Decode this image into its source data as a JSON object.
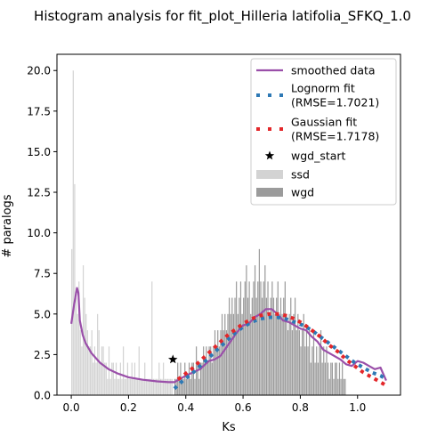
{
  "chart_data": {
    "type": "histogram",
    "title": "Histogram analysis for fit_plot_Hilleria latifolia_SFKQ_1.0",
    "xlabel": "Ks",
    "ylabel": "# paralogs",
    "xlim": [
      -0.05,
      1.15
    ],
    "ylim": [
      0,
      21
    ],
    "xticks": [
      0.0,
      0.2,
      0.4,
      0.6,
      0.8,
      1.0
    ],
    "xtick_labels": [
      "0.0",
      "0.2",
      "0.4",
      "0.6",
      "0.8",
      "1.0"
    ],
    "yticks": [
      0.0,
      2.5,
      5.0,
      7.5,
      10.0,
      12.5,
      15.0,
      17.5,
      20.0
    ],
    "ytick_labels": [
      "0.0",
      "2.5",
      "5.0",
      "7.5",
      "10.0",
      "12.5",
      "15.0",
      "17.5",
      "20.0"
    ],
    "grid": false,
    "legend_position": "upper-right",
    "legend": [
      {
        "key": "smoothed",
        "label": "smoothed data"
      },
      {
        "key": "lognorm",
        "label": "Lognorm fit",
        "label2": "(RMSE=1.7021)"
      },
      {
        "key": "gaussian",
        "label": "Gaussian fit",
        "label2": "(RMSE=1.7178)"
      },
      {
        "key": "wgd_start",
        "label": "wgd_start"
      },
      {
        "key": "ssd",
        "label": "ssd"
      },
      {
        "key": "wgd",
        "label": "wgd"
      }
    ],
    "colors": {
      "ssd": "#d3d3d3",
      "wgd": "#9b9b9b",
      "smoothed": "#9a4fa9",
      "lognorm": "#2e79b5",
      "gaussian": "#e3272a",
      "wgd_start": "#000000"
    },
    "bin_width": 0.005,
    "ssd_bins_start": 0.0,
    "ssd_counts": [
      9,
      20,
      13,
      6,
      5,
      7,
      4,
      3,
      8,
      6,
      5,
      4,
      3,
      3,
      4,
      2,
      3,
      2,
      5,
      4,
      2,
      3,
      3,
      2,
      2,
      1,
      3,
      1,
      2,
      2,
      1,
      2,
      1,
      1,
      2,
      1,
      3,
      1,
      1,
      2,
      1,
      1,
      2,
      1,
      2,
      1,
      1,
      3,
      1,
      1,
      1,
      2,
      1,
      1,
      1,
      1,
      7,
      1,
      1,
      1,
      1,
      2,
      1,
      1,
      2,
      1,
      1,
      1,
      1,
      1,
      1
    ],
    "wgd_bins_start": 0.36,
    "wgd_counts": [
      1,
      1,
      2,
      1,
      2,
      1,
      1,
      2,
      1,
      1,
      2,
      1,
      2,
      2,
      1,
      3,
      2,
      1,
      2,
      2,
      3,
      2,
      3,
      2,
      3,
      3,
      2,
      3,
      4,
      3,
      4,
      3,
      4,
      5,
      4,
      5,
      4,
      5,
      6,
      5,
      6,
      5,
      6,
      7,
      5,
      6,
      7,
      5,
      6,
      7,
      8,
      6,
      7,
      5,
      6,
      7,
      8,
      6,
      7,
      9,
      7,
      6,
      7,
      8,
      6,
      7,
      5,
      6,
      7,
      6,
      5,
      6,
      7,
      5,
      6,
      5,
      6,
      7,
      5,
      4,
      5,
      6,
      4,
      5,
      6,
      4,
      5,
      4,
      3,
      4,
      5,
      3,
      4,
      3,
      4,
      2,
      3,
      4,
      2,
      3,
      2,
      3,
      4,
      2,
      3,
      2,
      3,
      2,
      1,
      2,
      2,
      1,
      2,
      2,
      1,
      2,
      1,
      2,
      1,
      1
    ],
    "smoothed": {
      "x": [
        0.0,
        0.01,
        0.02,
        0.025,
        0.03,
        0.04,
        0.05,
        0.07,
        0.1,
        0.13,
        0.16,
        0.2,
        0.25,
        0.3,
        0.34,
        0.36,
        0.4,
        0.45,
        0.48,
        0.5,
        0.52,
        0.54,
        0.56,
        0.58,
        0.6,
        0.62,
        0.64,
        0.66,
        0.68,
        0.7,
        0.72,
        0.74,
        0.76,
        0.78,
        0.8,
        0.82,
        0.84,
        0.86,
        0.88,
        0.9,
        0.92,
        0.94,
        0.96,
        0.98,
        1.0,
        1.02,
        1.04,
        1.06,
        1.08,
        1.1
      ],
      "y": [
        4.4,
        5.6,
        6.6,
        6.3,
        4.6,
        3.7,
        3.2,
        2.6,
        2.0,
        1.6,
        1.35,
        1.1,
        0.95,
        0.85,
        0.8,
        0.8,
        1.2,
        1.6,
        2.1,
        2.2,
        2.4,
        2.9,
        3.4,
        3.9,
        4.3,
        4.4,
        4.8,
        5.0,
        5.3,
        5.3,
        5.0,
        4.6,
        4.5,
        4.3,
        4.1,
        4.0,
        3.6,
        3.3,
        2.8,
        2.6,
        2.4,
        2.2,
        1.9,
        1.8,
        2.1,
        2.0,
        1.8,
        1.6,
        1.7,
        0.9
      ]
    },
    "lognorm": {
      "x": [
        0.36,
        0.39,
        0.42,
        0.45,
        0.48,
        0.51,
        0.54,
        0.57,
        0.6,
        0.63,
        0.66,
        0.69,
        0.72,
        0.75,
        0.78,
        0.81,
        0.84,
        0.87,
        0.9,
        0.93,
        0.96,
        0.99,
        1.02,
        1.05,
        1.08,
        1.1
      ],
      "y": [
        0.4,
        0.9,
        1.3,
        1.8,
        2.3,
        2.8,
        3.3,
        3.8,
        4.2,
        4.5,
        4.7,
        4.8,
        4.8,
        4.7,
        4.5,
        4.3,
        4.0,
        3.6,
        3.2,
        2.8,
        2.4,
        2.0,
        1.7,
        1.4,
        1.2,
        1.0
      ]
    },
    "gaussian": {
      "x": [
        0.36,
        0.39,
        0.42,
        0.45,
        0.48,
        0.51,
        0.54,
        0.57,
        0.6,
        0.63,
        0.66,
        0.69,
        0.72,
        0.75,
        0.78,
        0.81,
        0.84,
        0.87,
        0.9,
        0.93,
        0.96,
        0.99,
        1.02,
        1.05,
        1.08,
        1.1
      ],
      "y": [
        0.8,
        1.2,
        1.6,
        2.1,
        2.6,
        3.1,
        3.6,
        4.0,
        4.4,
        4.7,
        4.9,
        5.0,
        5.0,
        4.9,
        4.7,
        4.4,
        4.0,
        3.6,
        3.1,
        2.7,
        2.2,
        1.8,
        1.4,
        1.1,
        0.8,
        0.6
      ]
    },
    "wgd_start_point": {
      "x": 0.355,
      "y": 2.2
    }
  }
}
